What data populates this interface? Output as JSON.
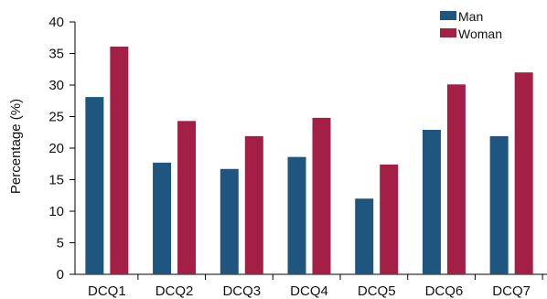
{
  "chart_data": {
    "type": "bar",
    "title": "",
    "xlabel": "",
    "ylabel": "Percentage (%)",
    "categories": [
      "DCQ1",
      "DCQ2",
      "DCQ3",
      "DCQ4",
      "DCQ5",
      "DCQ6",
      "DCQ7"
    ],
    "series": [
      {
        "name": "Man",
        "color": "#1f5680",
        "values": [
          28.1,
          17.7,
          16.7,
          18.6,
          12.0,
          22.9,
          21.9
        ]
      },
      {
        "name": "Woman",
        "color": "#a31f46",
        "values": [
          36.1,
          24.3,
          21.9,
          24.8,
          17.4,
          30.1,
          32.0
        ]
      }
    ],
    "ylim": [
      0,
      40
    ],
    "yticks": [
      0,
      5,
      10,
      15,
      20,
      25,
      30,
      35,
      40
    ],
    "grid": false,
    "legend": "top-right"
  }
}
